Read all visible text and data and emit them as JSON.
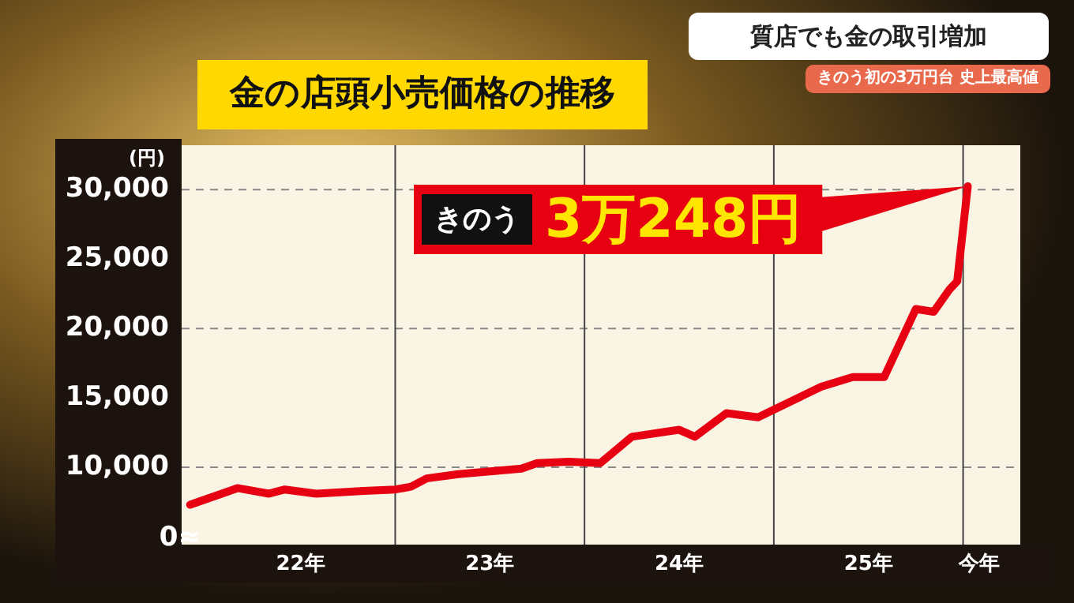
{
  "chart_data": {
    "type": "line",
    "title": "金の店頭小売価格の推移",
    "ylabel": "(円)",
    "x": [
      "2021-12",
      "2022-03",
      "2022-05",
      "2022-06",
      "2022-08",
      "2022-11",
      "2023-01",
      "2023-02",
      "2023-03",
      "2023-05",
      "2023-07",
      "2023-09",
      "2023-10",
      "2023-12",
      "2024-02",
      "2024-04",
      "2024-07",
      "2024-08",
      "2024-10",
      "2024-12",
      "2025-04",
      "2025-06",
      "2025-08",
      "2025-10",
      "2025-11-05",
      "2025-12-05",
      "2025-12-20",
      "2026-01-10"
    ],
    "series": [
      {
        "color": "#e60012",
        "values": [
          7300,
          8500,
          8100,
          8400,
          8100,
          8300,
          8400,
          8600,
          9200,
          9500,
          9700,
          9900,
          10300,
          10400,
          10300,
          12200,
          12700,
          12200,
          13900,
          13600,
          15800,
          16500,
          16500,
          21400,
          21200,
          22800,
          23400,
          30248
        ]
      }
    ],
    "xlim": [
      "2021-11-15",
      "2026-04-20"
    ],
    "xticks": [
      {
        "value": "2022-07",
        "label": "22年"
      },
      {
        "value": "2023-07",
        "label": "23年"
      },
      {
        "value": "2024-07",
        "label": "24年"
      },
      {
        "value": "2025-07",
        "label": "25年"
      },
      {
        "value": "2026-02",
        "label": "今年"
      }
    ],
    "ylim": [
      4430,
      33200
    ],
    "yticks": [
      {
        "value": 10000,
        "label": "10,000"
      },
      {
        "value": 15000,
        "label": "15,000"
      },
      {
        "value": 20000,
        "label": "20,000"
      },
      {
        "value": 25000,
        "label": "25,000"
      },
      {
        "value": 30000,
        "label": "30,000"
      }
    ],
    "ref_lines": [
      {
        "axis": "y",
        "value": 10000,
        "color": "#888888",
        "line_style": "dashed"
      },
      {
        "axis": "y",
        "value": 20000,
        "color": "#888888",
        "line_style": "dashed"
      },
      {
        "axis": "y",
        "value": 30000,
        "color": "#888888",
        "line_style": "dashed"
      },
      {
        "axis": "x",
        "value": "2023-01",
        "color": "#444444",
        "line_style": "solid"
      },
      {
        "axis": "x",
        "value": "2024-01",
        "color": "#444444",
        "line_style": "solid"
      },
      {
        "axis": "x",
        "value": "2025-01",
        "color": "#444444",
        "line_style": "solid"
      },
      {
        "axis": "x",
        "value": "2026-01",
        "color": "#444444",
        "line_style": "solid"
      }
    ],
    "annotations": [
      {
        "text": "きのう 3万248円",
        "x": "2026-01-10",
        "y": 30248
      },
      "質店でも金の取引増加",
      "きのう初の3万円台 史上最高値",
      "0≈"
    ],
    "grid": false,
    "legend": false,
    "marker": "none",
    "line_style": "solid"
  }
}
